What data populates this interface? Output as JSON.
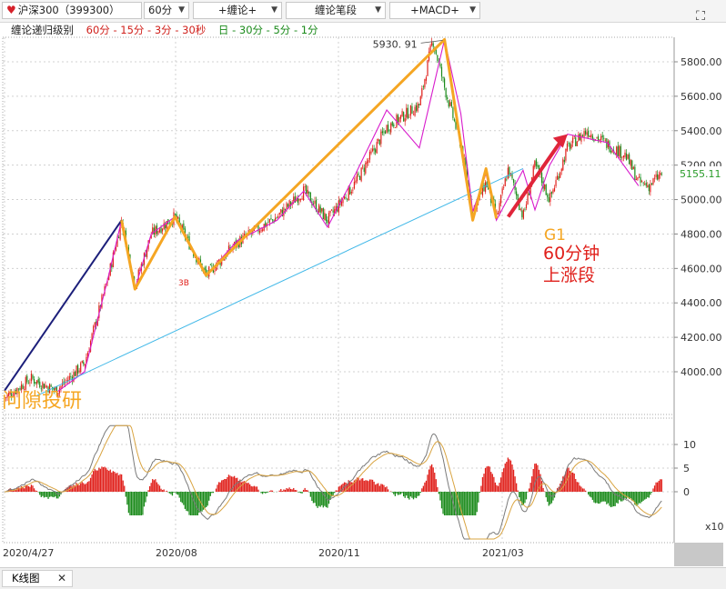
{
  "toolbar": {
    "symbol": "沪深300（399300）",
    "period": "60分",
    "chan_add": "+缠论+",
    "chan_pen": "缠论笔段",
    "macd_add": "+MACD+"
  },
  "legend": {
    "title": "缠论递归级别",
    "levels_red": "60分 - 15分 - 3分 - 30秒",
    "levels_green": "日 - 30分 - 5分 - 1分"
  },
  "colors": {
    "up": "#e0201b",
    "down": "#1a8a1a",
    "segment": "#f5a623",
    "trend_navy": "#1c1f7a",
    "channel": "#40b8e8",
    "pen": "#d81bcc",
    "arrow": "#e0253a"
  },
  "annotations": {
    "peak_label": "5930. 91",
    "last_price": "5155.11",
    "g1_label": "G1",
    "text_line1": "60分钟",
    "text_line2": "上涨段",
    "b3_label": "3B",
    "watermark": "问隙投研"
  },
  "macd_unit": "x10",
  "bottom_tab": {
    "label": "K线图",
    "close": "✕"
  },
  "chart_data": [
    {
      "type": "line",
      "name": "price",
      "x": [
        "2020/4/27",
        "2020/5/15",
        "2020/6/1",
        "2020/6/20",
        "2020/7/6",
        "2020/7/15",
        "2020/7/24",
        "2020/8/4",
        "2020/8/20",
        "2020/9/10",
        "2020/10/1",
        "2020/10/28",
        "2020/11/15",
        "2020/12/1",
        "2020/12/20",
        "2021/1/10",
        "2021/2/1",
        "2021/2/10",
        "2021/2/18",
        "2021/3/1",
        "2021/3/9",
        "2021/3/18",
        "2021/3/25",
        "2021/4/2",
        "2021/4/12",
        "2021/4/20",
        "2021/4/30",
        "2021/5/12",
        "2021/5/25",
        "2021/6/8",
        "2021/6/20",
        "2021/6/29",
        "2021/7/6",
        "2021/7/15"
      ],
      "y": [
        3850,
        3960,
        3890,
        4050,
        4550,
        4880,
        4500,
        4800,
        4900,
        4560,
        4750,
        4900,
        5050,
        4880,
        5100,
        5420,
        5550,
        5930,
        5650,
        5320,
        4930,
        5100,
        4890,
        5180,
        4900,
        5200,
        5000,
        5300,
        5400,
        5320,
        5260,
        5100,
        5080,
        5155.11
      ],
      "ylim": [
        3800,
        5950
      ],
      "y_ticks": [
        "4000.00",
        "4200.00",
        "4400.00",
        "4600.00",
        "4800.00",
        "5000.00",
        "5200.00",
        "5400.00",
        "5600.00",
        "5800.00"
      ],
      "x_ticks": [
        "2020/4/27",
        "2020/08",
        "2020/11",
        "2021/03"
      ]
    },
    {
      "type": "line",
      "name": "segment",
      "x": [
        "2020/7/15",
        "2020/7/24",
        "2020/8/20",
        "2020/9/10",
        "2021/2/18",
        "2021/3/9",
        "2021/3/18",
        "2021/3/25"
      ],
      "y": [
        4880,
        4480,
        4900,
        4560,
        5930,
        4880,
        5180,
        4890
      ]
    },
    {
      "type": "bar",
      "name": "MACD",
      "y_ticks": [
        "10",
        "5",
        "0"
      ],
      "ylim": [
        -5,
        14
      ]
    }
  ]
}
